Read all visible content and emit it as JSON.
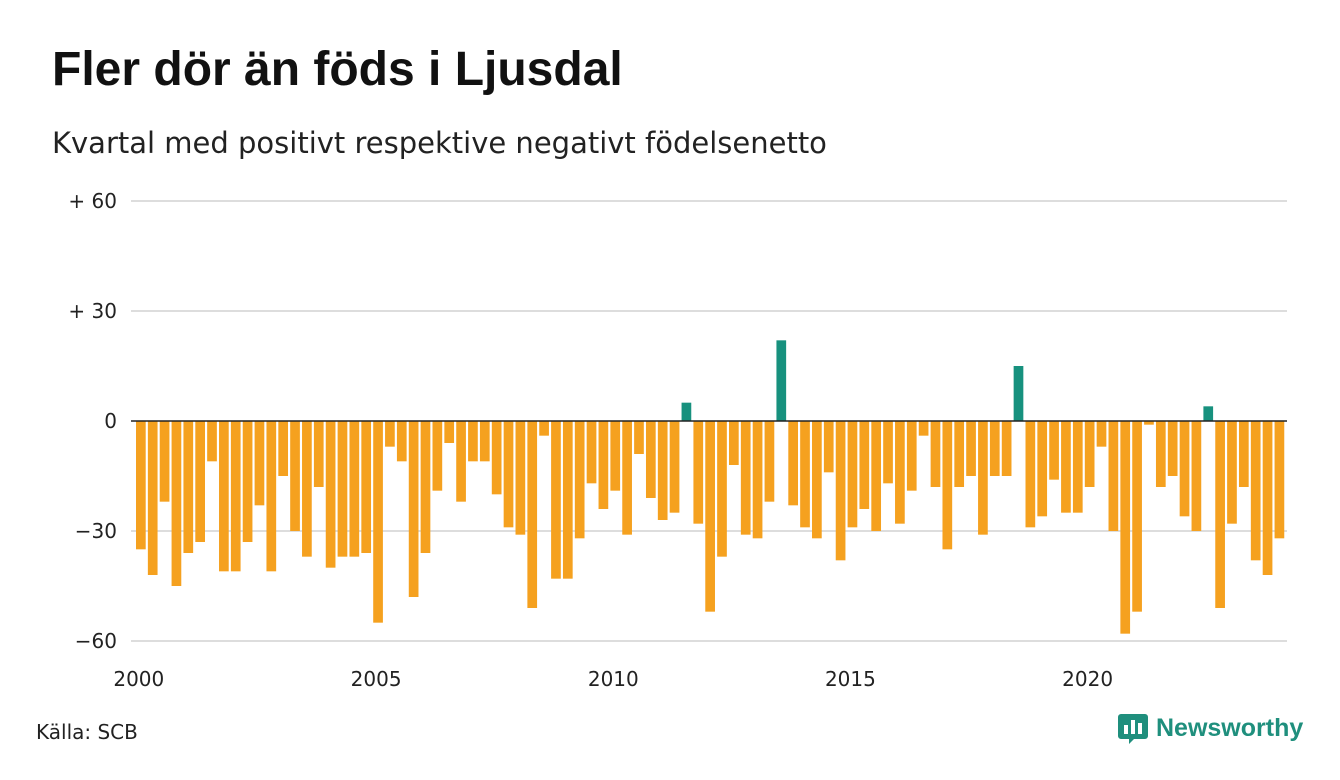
{
  "colors": {
    "positive": "#17917e",
    "negative": "#f5a11f",
    "grid": "#dddddd",
    "zero": "#222222",
    "brand": "#1f8f7d"
  },
  "title": "Fler dör än föds i Ljusdal",
  "subtitle": "Kvartal med positivt respektive negativt födelsenetto",
  "source": "Källa: SCB",
  "brand": {
    "name": "Newsworthy",
    "icon": "newsworthy-logo-icon"
  },
  "chart_data": {
    "type": "bar",
    "title": "Fler dör än föds i Ljusdal",
    "subtitle": "Kvartal med positivt respektive negativt födelsenetto",
    "xlabel": "",
    "ylabel": "",
    "ylim": [
      -60,
      60
    ],
    "grid": true,
    "legend": "none",
    "y_ticks": [
      {
        "value": 60,
        "label": "+ 60"
      },
      {
        "value": 30,
        "label": "+ 30"
      },
      {
        "value": 0,
        "label": "0"
      },
      {
        "value": -30,
        "label": "−30"
      },
      {
        "value": -60,
        "label": "−60"
      }
    ],
    "x_ticks": [
      "2000",
      "2005",
      "2010",
      "2015",
      "2020"
    ],
    "start_year": 2000,
    "values": [
      -35,
      -42,
      -22,
      -45,
      -36,
      -33,
      -11,
      -41,
      -41,
      -33,
      -23,
      -41,
      -15,
      -30,
      -37,
      -18,
      -40,
      -37,
      -37,
      -36,
      -55,
      -7,
      -11,
      -48,
      -36,
      -19,
      -6,
      -22,
      -11,
      -11,
      -20,
      -29,
      -31,
      -51,
      -4,
      -43,
      -43,
      -32,
      -17,
      -24,
      -19,
      -31,
      -9,
      -21,
      -27,
      -25,
      5,
      -28,
      -52,
      -37,
      -12,
      -31,
      -32,
      -22,
      22,
      -23,
      -29,
      -32,
      -14,
      -38,
      -29,
      -24,
      -30,
      -17,
      -28,
      -19,
      -4,
      -18,
      -35,
      -18,
      -15,
      -31,
      -15,
      -15,
      15,
      -29,
      -26,
      -16,
      -25,
      -25,
      -18,
      -7,
      -30,
      -58,
      -52,
      -1,
      -18,
      -15,
      -26,
      -30,
      4,
      -51,
      -28,
      -18,
      -38,
      -42,
      -32
    ]
  }
}
